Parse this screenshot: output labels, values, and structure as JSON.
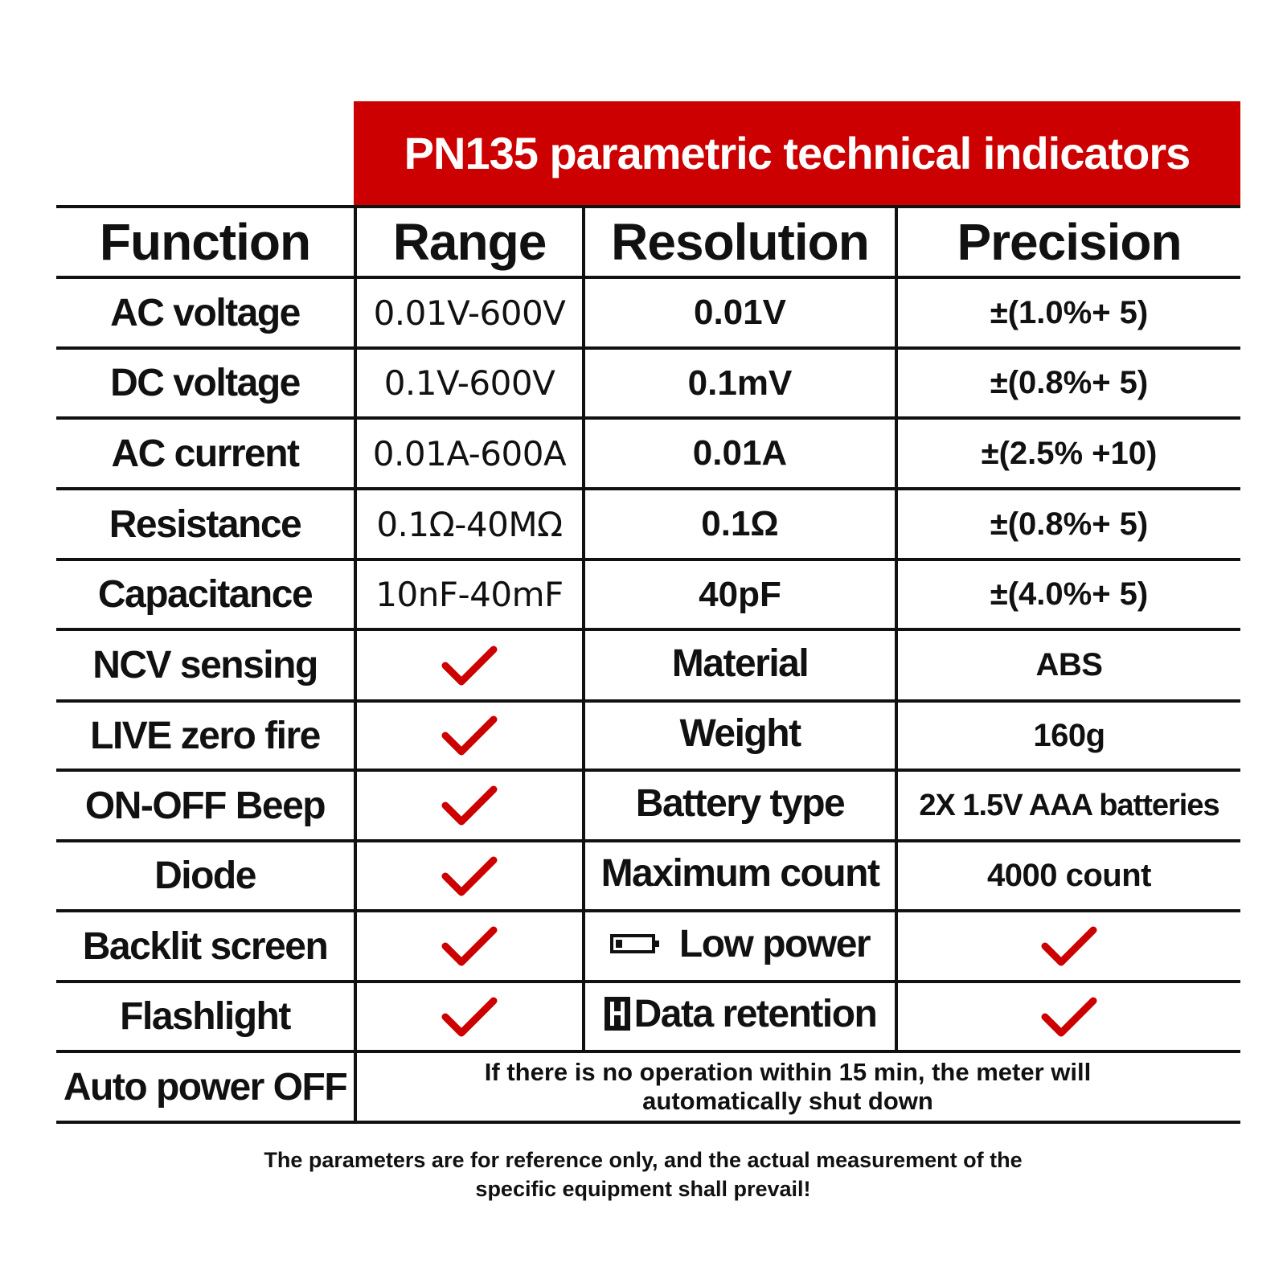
{
  "title": "PN135 parametric technical indicators",
  "headers": {
    "function": "Function",
    "range": "Range",
    "resolution": "Resolution",
    "precision": "Precision"
  },
  "measurements": [
    {
      "function": "AC voltage",
      "range": "0.01V-600V",
      "resolution": "0.01V",
      "precision": "±(1.0%+ 5)"
    },
    {
      "function": "DC voltage",
      "range": "0.1V-600V",
      "resolution": "0.1mV",
      "precision": "±(0.8%+ 5)"
    },
    {
      "function": "AC current",
      "range": "0.01A-600A",
      "resolution": "0.01A",
      "precision": "±(2.5% +10)"
    },
    {
      "function": "Resistance",
      "range": "0.1Ω-40MΩ",
      "resolution": "0.1Ω",
      "precision": "±(0.8%+ 5)"
    },
    {
      "function": "Capacitance",
      "range": "10nF-40mF",
      "resolution": "40pF",
      "precision": "±(4.0%+ 5)"
    }
  ],
  "features": [
    {
      "function": "NCV sensing",
      "supported": true,
      "label": "Material",
      "value": "ABS"
    },
    {
      "function": "LIVE zero fire",
      "supported": true,
      "label": "Weight",
      "value": "160g"
    },
    {
      "function": "ON-OFF Beep",
      "supported": true,
      "label": "Battery type",
      "value": "2X 1.5V AAA batteries"
    },
    {
      "function": "Diode",
      "supported": true,
      "label": "Maximum count",
      "value": "4000 count"
    },
    {
      "function": "Backlit screen",
      "supported": true,
      "label": "Low power",
      "label_icon": "battery-low-icon",
      "value_supported": true
    },
    {
      "function": "Flashlight",
      "supported": true,
      "label": "Data retention",
      "label_icon": "hold-h-icon",
      "value_supported": true
    }
  ],
  "auto_power_off": {
    "function": "Auto power OFF",
    "note": "If there is no operation within 15 min, the meter will automatically shut down"
  },
  "footer": "The parameters are for reference only, and the actual measurement of the specific equipment shall prevail!",
  "colors": {
    "accent": "#cc0000",
    "text": "#111111",
    "background": "#ffffff"
  }
}
